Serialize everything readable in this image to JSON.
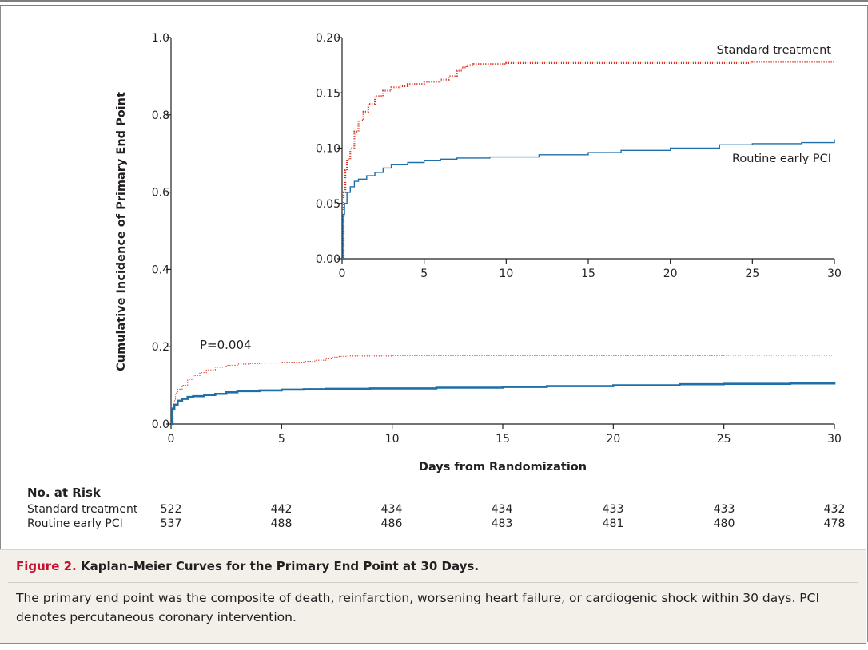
{
  "chart_data": [
    {
      "type": "line",
      "title": "",
      "xlabel": "Days from Randomization",
      "ylabel": "Cumulative Incidence of Primary End Point",
      "xlim": [
        0,
        30
      ],
      "ylim": [
        0,
        1.0
      ],
      "xticks": [
        0,
        5,
        10,
        15,
        20,
        25,
        30
      ],
      "yticks": [
        "0.0",
        "0.2",
        "0.4",
        "0.6",
        "0.8",
        "1.0"
      ],
      "annotation": "P=0.004",
      "series": [
        {
          "name": "Standard treatment",
          "style": "dotted",
          "color": "#d7301f",
          "x": [
            0,
            0.1,
            0.2,
            0.3,
            0.5,
            0.75,
            1.0,
            1.3,
            1.6,
            2.0,
            2.5,
            3.0,
            3.5,
            4.0,
            5.0,
            6.0,
            6.5,
            7.0,
            7.3,
            7.6,
            8.0,
            9.0,
            10.0,
            14.0,
            20.0,
            25.0,
            30.0
          ],
          "y": [
            0,
            0.06,
            0.08,
            0.09,
            0.1,
            0.115,
            0.125,
            0.133,
            0.14,
            0.147,
            0.152,
            0.155,
            0.156,
            0.158,
            0.16,
            0.162,
            0.165,
            0.17,
            0.173,
            0.175,
            0.176,
            0.176,
            0.177,
            0.177,
            0.177,
            0.178,
            0.178
          ]
        },
        {
          "name": "Routine early PCI",
          "style": "solid",
          "color": "#1f6fa8",
          "x": [
            0,
            0.05,
            0.15,
            0.3,
            0.5,
            0.75,
            1.0,
            1.5,
            2.0,
            2.5,
            3.0,
            4.0,
            5.0,
            6.0,
            7.0,
            8.0,
            9.0,
            10.0,
            12.0,
            15.0,
            17.0,
            20.0,
            23.0,
            25.0,
            28.0,
            30.0
          ],
          "y": [
            0,
            0.04,
            0.05,
            0.06,
            0.065,
            0.07,
            0.072,
            0.075,
            0.078,
            0.082,
            0.085,
            0.087,
            0.089,
            0.09,
            0.091,
            0.091,
            0.092,
            0.092,
            0.094,
            0.096,
            0.098,
            0.1,
            0.103,
            0.104,
            0.105,
            0.108
          ]
        }
      ]
    },
    {
      "type": "line",
      "title": "",
      "xlabel": "",
      "ylabel": "",
      "xlim": [
        0,
        30
      ],
      "ylim": [
        0,
        0.2
      ],
      "xticks": [
        0,
        5,
        10,
        15,
        20,
        25,
        30
      ],
      "yticks": [
        "0.00",
        "0.05",
        "0.10",
        "0.15",
        "0.20"
      ],
      "series": [
        {
          "name": "Standard treatment",
          "style": "dotted",
          "color": "#d7301f",
          "x": [
            0,
            0.1,
            0.2,
            0.3,
            0.5,
            0.75,
            1.0,
            1.3,
            1.6,
            2.0,
            2.5,
            3.0,
            3.5,
            4.0,
            5.0,
            6.0,
            6.5,
            7.0,
            7.3,
            7.6,
            8.0,
            9.0,
            10.0,
            14.0,
            20.0,
            25.0,
            30.0
          ],
          "y": [
            0,
            0.06,
            0.08,
            0.09,
            0.1,
            0.115,
            0.125,
            0.133,
            0.14,
            0.147,
            0.152,
            0.155,
            0.156,
            0.158,
            0.16,
            0.162,
            0.165,
            0.17,
            0.173,
            0.175,
            0.176,
            0.176,
            0.177,
            0.177,
            0.177,
            0.178,
            0.178
          ]
        },
        {
          "name": "Routine early PCI",
          "style": "solid",
          "color": "#1f6fa8",
          "x": [
            0,
            0.05,
            0.15,
            0.3,
            0.5,
            0.75,
            1.0,
            1.5,
            2.0,
            2.5,
            3.0,
            4.0,
            5.0,
            6.0,
            7.0,
            8.0,
            9.0,
            10.0,
            12.0,
            15.0,
            17.0,
            20.0,
            23.0,
            25.0,
            28.0,
            30.0
          ],
          "y": [
            0,
            0.04,
            0.05,
            0.06,
            0.065,
            0.07,
            0.072,
            0.075,
            0.078,
            0.082,
            0.085,
            0.087,
            0.089,
            0.09,
            0.091,
            0.091,
            0.092,
            0.092,
            0.094,
            0.096,
            0.098,
            0.1,
            0.103,
            0.104,
            0.105,
            0.108
          ]
        }
      ]
    }
  ],
  "at_risk": {
    "title": "No. at Risk",
    "rows": [
      {
        "label": "Standard treatment",
        "values": [
          "522",
          "442",
          "434",
          "434",
          "433",
          "433",
          "432"
        ]
      },
      {
        "label": "Routine early PCI",
        "values": [
          "537",
          "488",
          "486",
          "483",
          "481",
          "480",
          "478"
        ]
      }
    ]
  },
  "caption": {
    "figure_label": "Figure 2.",
    "title": "Kaplan–Meier Curves for the Primary End Point at 30 Days.",
    "body": "The primary end point was the composite of death, reinfarction, worsening heart failure, or cardiogenic shock within 30 days. PCI denotes percutaneous coronary intervention."
  }
}
